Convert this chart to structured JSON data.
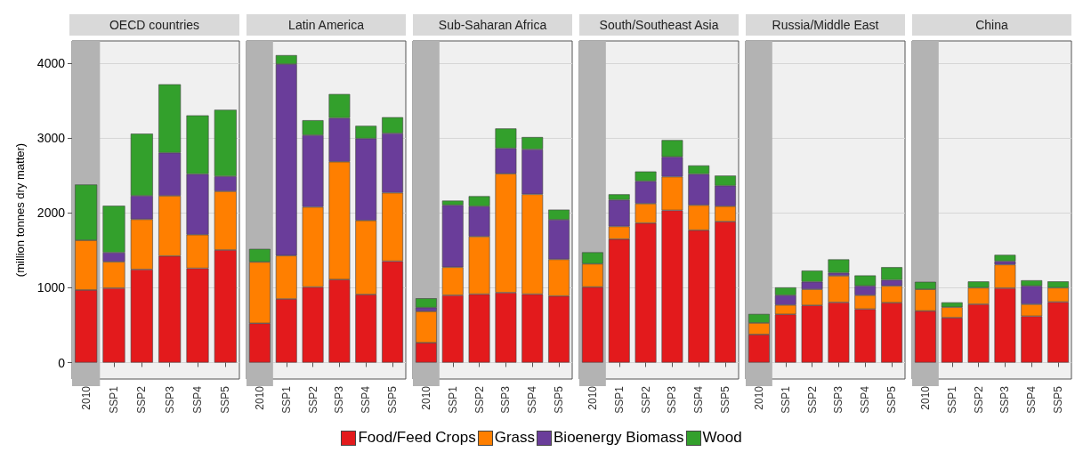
{
  "chart_data": [
    {
      "type": "bar",
      "stacked": true,
      "title": "OECD countries",
      "ylabel": "(million tonnes dry matter)",
      "categories": [
        "2010",
        "SSP1",
        "SSP2",
        "SSP3",
        "SSP4",
        "SSP5"
      ],
      "ylim": [
        -220,
        4300
      ],
      "yticks": [
        0,
        1000,
        2000,
        3000,
        4000
      ],
      "grid": "y",
      "legend": "bottom",
      "bands": [
        {
          "axis": "x",
          "from": "2010",
          "to": "2010",
          "color": "#b3b3b3"
        }
      ],
      "series": [
        {
          "name": "Food/Feed Crops",
          "color": "#e31a1c",
          "values": [
            970,
            995,
            1245,
            1425,
            1260,
            1505
          ]
        },
        {
          "name": "Grass",
          "color": "#ff7f00",
          "values": [
            665,
            353,
            670,
            805,
            450,
            785
          ]
        },
        {
          "name": "Bioenergy Biomass",
          "color": "#6a3d9a",
          "values": [
            0,
            122,
            315,
            575,
            810,
            200
          ]
        },
        {
          "name": "Wood",
          "color": "#33a02c",
          "values": [
            745,
            627,
            830,
            915,
            785,
            890
          ]
        }
      ]
    },
    {
      "type": "bar",
      "stacked": true,
      "title": "Latin America",
      "categories": [
        "2010",
        "SSP1",
        "SSP2",
        "SSP3",
        "SSP4",
        "SSP5"
      ],
      "ylim": [
        -220,
        4300
      ],
      "yticks": [
        0,
        1000,
        2000,
        3000,
        4000
      ],
      "grid": "y",
      "tick_labels": "x",
      "bands": [
        {
          "axis": "x",
          "from": "2010",
          "to": "2010",
          "color": "#b3b3b3"
        }
      ],
      "series": [
        {
          "color": "#e31a1c",
          "values": [
            525,
            850,
            1010,
            1110,
            910,
            1355
          ]
        },
        {
          "color": "#ff7f00",
          "values": [
            820,
            580,
            1070,
            1575,
            990,
            915
          ]
        },
        {
          "color": "#6a3d9a",
          "values": [
            0,
            2560,
            960,
            585,
            1095,
            795
          ]
        },
        {
          "color": "#33a02c",
          "values": [
            175,
            120,
            200,
            320,
            170,
            215
          ]
        }
      ]
    },
    {
      "type": "bar",
      "stacked": true,
      "title": "Sub-Saharan Africa",
      "categories": [
        "2010",
        "SSP1",
        "SSP2",
        "SSP3",
        "SSP4",
        "SSP5"
      ],
      "ylim": [
        -220,
        4300
      ],
      "yticks": [
        0,
        1000,
        2000,
        3000,
        4000
      ],
      "grid": "y",
      "tick_labels": "x",
      "bands": [
        {
          "axis": "x",
          "from": "2010",
          "to": "2010",
          "color": "#b3b3b3"
        }
      ],
      "series": [
        {
          "color": "#e31a1c",
          "values": [
            265,
            900,
            915,
            935,
            915,
            890
          ]
        },
        {
          "color": "#ff7f00",
          "values": [
            420,
            375,
            770,
            1590,
            1335,
            490
          ]
        },
        {
          "color": "#6a3d9a",
          "values": [
            50,
            830,
            405,
            340,
            600,
            530
          ]
        },
        {
          "color": "#33a02c",
          "values": [
            125,
            60,
            135,
            265,
            165,
            135
          ]
        }
      ]
    },
    {
      "type": "bar",
      "stacked": true,
      "title": "South/Southeast Asia",
      "categories": [
        "2010",
        "SSP1",
        "SSP2",
        "SSP3",
        "SSP4",
        "SSP5"
      ],
      "ylim": [
        -220,
        4300
      ],
      "yticks": [
        0,
        1000,
        2000,
        3000,
        4000
      ],
      "grid": "y",
      "tick_labels": "x",
      "bands": [
        {
          "axis": "x",
          "from": "2010",
          "to": "2010",
          "color": "#b3b3b3"
        }
      ],
      "series": [
        {
          "color": "#e31a1c",
          "values": [
            1010,
            1650,
            1865,
            2035,
            1770,
            1885
          ]
        },
        {
          "color": "#ff7f00",
          "values": [
            310,
            170,
            260,
            450,
            335,
            205
          ]
        },
        {
          "color": "#6a3d9a",
          "values": [
            0,
            355,
            300,
            265,
            415,
            275
          ]
        },
        {
          "color": "#33a02c",
          "values": [
            155,
            75,
            130,
            225,
            115,
            135
          ]
        }
      ]
    },
    {
      "type": "bar",
      "stacked": true,
      "title": "Russia/Middle East",
      "categories": [
        "2010",
        "SSP1",
        "SSP2",
        "SSP3",
        "SSP4",
        "SSP5"
      ],
      "ylim": [
        -220,
        4300
      ],
      "yticks": [
        0,
        1000,
        2000,
        3000,
        4000
      ],
      "grid": "y",
      "tick_labels": "x",
      "bands": [
        {
          "axis": "x",
          "from": "2010",
          "to": "2010",
          "color": "#b3b3b3"
        }
      ],
      "series": [
        {
          "color": "#e31a1c",
          "values": [
            375,
            645,
            765,
            805,
            715,
            800
          ]
        },
        {
          "color": "#ff7f00",
          "values": [
            155,
            125,
            215,
            355,
            185,
            225
          ]
        },
        {
          "color": "#6a3d9a",
          "values": [
            0,
            130,
            100,
            40,
            125,
            80
          ]
        },
        {
          "color": "#33a02c",
          "values": [
            120,
            105,
            150,
            180,
            140,
            170
          ]
        }
      ]
    },
    {
      "type": "bar",
      "stacked": true,
      "title": "China",
      "categories": [
        "2010",
        "SSP1",
        "SSP2",
        "SSP3",
        "SSP4",
        "SSP5"
      ],
      "ylim": [
        -220,
        4300
      ],
      "yticks": [
        0,
        1000,
        2000,
        3000,
        4000
      ],
      "grid": "y",
      "tick_labels": "x",
      "bands": [
        {
          "axis": "x",
          "from": "2010",
          "to": "2010",
          "color": "#b3b3b3"
        }
      ],
      "series": [
        {
          "color": "#e31a1c",
          "values": [
            690,
            600,
            780,
            995,
            620,
            810
          ]
        },
        {
          "color": "#ff7f00",
          "values": [
            290,
            140,
            220,
            315,
            160,
            190
          ]
        },
        {
          "color": "#6a3d9a",
          "values": [
            0,
            0,
            0,
            45,
            245,
            0
          ]
        },
        {
          "color": "#33a02c",
          "values": [
            100,
            65,
            85,
            85,
            75,
            85
          ]
        }
      ]
    }
  ]
}
